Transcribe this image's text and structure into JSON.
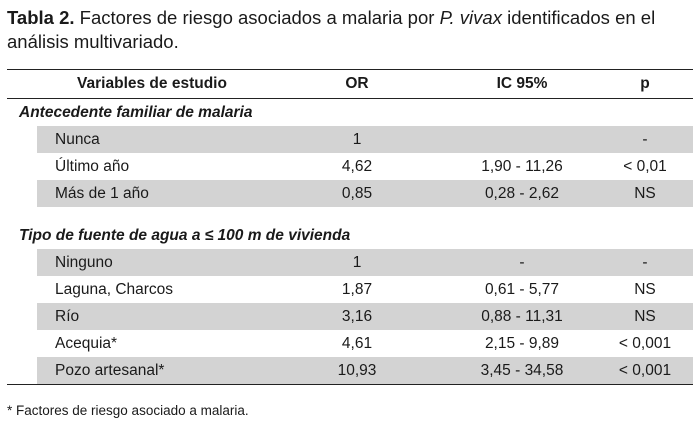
{
  "caption": {
    "label": "Tabla 2.",
    "text_before": " Factores de riesgo asociados a malaria por ",
    "text_italic": "P. vivax",
    "text_after": " identificados en el análisis multivariado."
  },
  "table": {
    "headers": {
      "variable": "Variables de estudio",
      "or": "OR",
      "ic": "IC 95%",
      "p": "p"
    },
    "sections": [
      {
        "title": "Antecedente familiar de malaria",
        "rows": [
          {
            "variable": "Nunca",
            "or": "1",
            "ic": "",
            "p": "-"
          },
          {
            "variable": "Último año",
            "or": "4,62",
            "ic": "1,90 - 11,26",
            "p": "< 0,01"
          },
          {
            "variable": "Más de 1 año",
            "or": "0,85",
            "ic": "0,28 -  2,62",
            "p": "NS"
          }
        ]
      },
      {
        "title": "Tipo de fuente de agua  a ≤ 100 m de vivienda",
        "rows": [
          {
            "variable": "Ninguno",
            "or": "1",
            "ic": "-",
            "p": "-"
          },
          {
            "variable": "Laguna, Charcos",
            "or": "1,87",
            "ic": "0,61 -  5,77",
            "p": "NS"
          },
          {
            "variable": "Río",
            "or": "3,16",
            "ic": "0,88 - 11,31",
            "p": "NS"
          },
          {
            "variable": "Acequia*",
            "or": "4,61",
            "ic": "2,15 -  9,89",
            "p": "< 0,001"
          },
          {
            "variable": "Pozo artesanal*",
            "or": "10,93",
            "ic": "3,45 - 34,58",
            "p": "< 0,001"
          }
        ]
      }
    ]
  },
  "footnote": "* Factores de riesgo asociado a malaria."
}
